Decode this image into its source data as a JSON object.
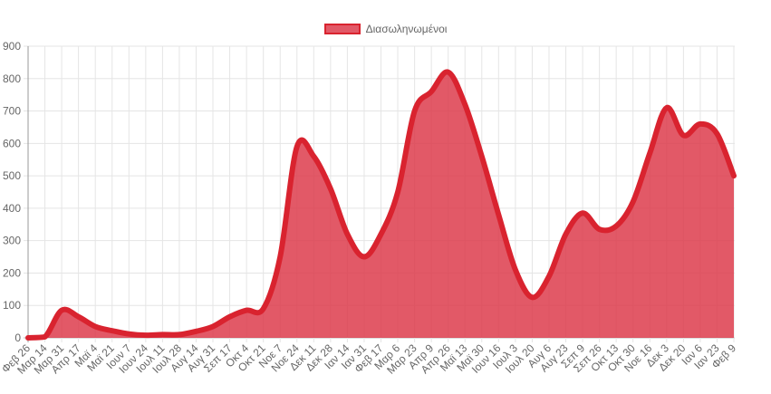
{
  "legend": {
    "label": "Διασωληνωμένοι",
    "color": "#d9232f",
    "fill": "rgba(220,53,69,0.82)"
  },
  "chart_data": {
    "type": "area",
    "title": "",
    "xlabel": "",
    "ylabel": "",
    "ylim": [
      0,
      900
    ],
    "yticks": [
      0,
      100,
      200,
      300,
      400,
      500,
      600,
      700,
      800,
      900
    ],
    "grid": true,
    "legend_position": "top",
    "categories": [
      "Φεβ 26",
      "Μαρ 14",
      "Μαρ 31",
      "Απρ 17",
      "Μαϊ 4",
      "Μαϊ 21",
      "Ιουν 7",
      "Ιουν 24",
      "Ιουλ 11",
      "Ιουλ 28",
      "Αυγ 14",
      "Αυγ 31",
      "Σεπ 17",
      "Οκτ 4",
      "Οκτ 21",
      "Νοε 7",
      "Νοε 24",
      "Δεκ 11",
      "Δεκ 28",
      "Ιαν 14",
      "Ιαν 31",
      "Φεβ 17",
      "Μαρ 6",
      "Μαρ 23",
      "Απρ 9",
      "Απρ 26",
      "Μαϊ 13",
      "Μαϊ 30",
      "Ιουν 16",
      "Ιουλ 3",
      "Ιουλ 20",
      "Αυγ 6",
      "Αυγ 23",
      "Σεπ 9",
      "Σεπ 26",
      "Οκτ 13",
      "Οκτ 30",
      "Νοε 16",
      "Δεκ 3",
      "Δεκ 20",
      "Ιαν 6",
      "Ιαν 23",
      "Φεβ 9"
    ],
    "series": [
      {
        "name": "Διασωληνωμένοι",
        "color": "#d9232f",
        "values": [
          0,
          3,
          85,
          65,
          35,
          22,
          12,
          8,
          10,
          10,
          20,
          35,
          65,
          85,
          90,
          250,
          590,
          560,
          460,
          320,
          250,
          320,
          450,
          700,
          760,
          820,
          720,
          560,
          380,
          210,
          125,
          190,
          320,
          385,
          335,
          345,
          420,
          570,
          710,
          625,
          660,
          630,
          500
        ]
      }
    ]
  }
}
